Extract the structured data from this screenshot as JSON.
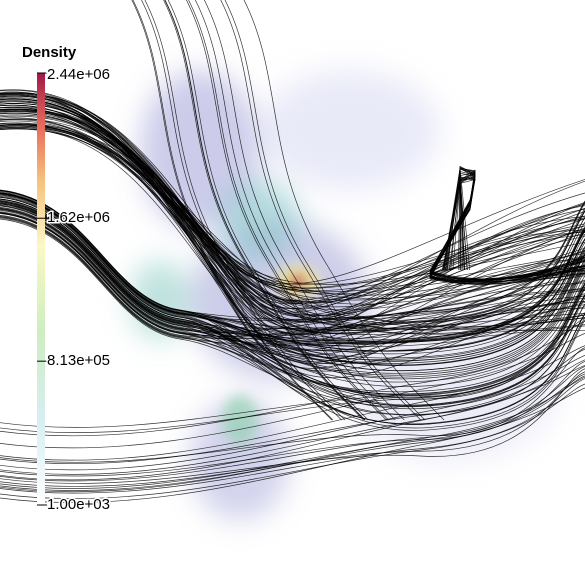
{
  "colorbar": {
    "title": "Density",
    "ticks": [
      {
        "value": 2440000,
        "label": "2.44e+06"
      },
      {
        "value": 1620000,
        "label": "1.62e+06"
      },
      {
        "value": 813000,
        "label": "8.13e+05"
      },
      {
        "value": 1000,
        "label": "1.00e+03"
      }
    ]
  }
}
